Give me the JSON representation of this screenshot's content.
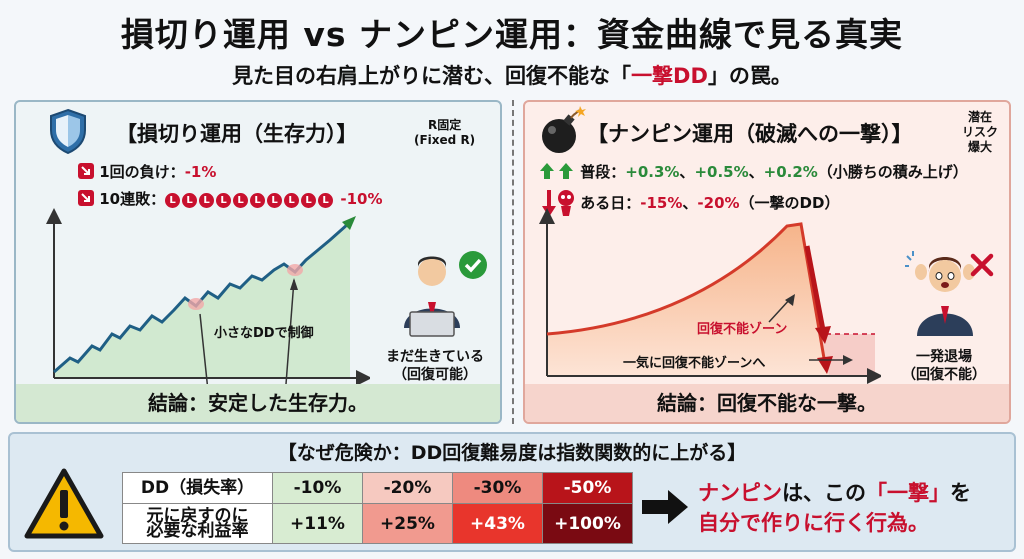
{
  "header": {
    "title": "損切り運用 vs ナンピン運用：資金曲線で見る真実",
    "subtitle_pre": "見た目の右肩上がりに潜む、回復不能な「",
    "subtitle_em": "一撃DD",
    "subtitle_post": "」の罠。"
  },
  "left": {
    "title": "【損切り運用（生存力）】",
    "tag_line1": "R固定",
    "tag_line2": "(Fixed R)",
    "stat1_label": "1回の負け：",
    "stat1_value": "-1%",
    "stat2_label": "10連敗：",
    "loss_badge": "L",
    "stat2_value": "-10%",
    "chart_label": "小さなDDで制御",
    "caption_line1": "まだ生きている",
    "caption_line2": "（回復可能）",
    "conclusion": "結論：安定した生存力。",
    "icons": [
      "shield-icon",
      "down-arrow-icon",
      "check-icon",
      "person-laptop-icon"
    ],
    "curve_color": "#1f5f85"
  },
  "right": {
    "title": "【ナンピン運用（破滅への一撃）】",
    "tag_line1": "潜在",
    "tag_line2": "リスク",
    "tag_line3": "爆大",
    "stat1_label": "普段：",
    "stat1_v1": "+0.3%",
    "stat1_v2": "+0.5%",
    "stat1_v3": "+0.2%",
    "stat1_sep": "、",
    "stat1_note": "（小勝ちの積み上げ）",
    "stat2_label": "ある日：",
    "stat2_v1": "-15%",
    "stat2_v2": "-20%",
    "stat2_note": "（一撃のDD）",
    "zone_label": "回復不能ゾーン",
    "zone_arrow_label": "一気に回復不能ゾーンへ",
    "caption_line1": "一発退場",
    "caption_line2": "（回復不能）",
    "conclusion": "結論：回復不能な一撃。",
    "icons": [
      "bomb-icon",
      "up-arrows-icon",
      "skull-icon",
      "cross-icon",
      "panicked-person-icon"
    ],
    "curve_color": "#d43a2a"
  },
  "bottom": {
    "title": "【なぜ危険か：DD回復難易度は指数関数的に上がる】",
    "row1_header": "DD（損失率）",
    "row2_header_line1": "元に戻すのに",
    "row2_header_line2": "必要な利益率",
    "dd": [
      "-10%",
      "-20%",
      "-30%",
      "-50%"
    ],
    "required": [
      "+11%",
      "+25%",
      "+43%",
      "+100%"
    ],
    "msg_a": "ナンピン",
    "msg_b": "は、この",
    "msg_c": "「一撃」",
    "msg_d": "を",
    "msg_line2": "自分で作りに行く行為。",
    "icons": [
      "warning-icon",
      "right-arrow-icon"
    ]
  }
}
